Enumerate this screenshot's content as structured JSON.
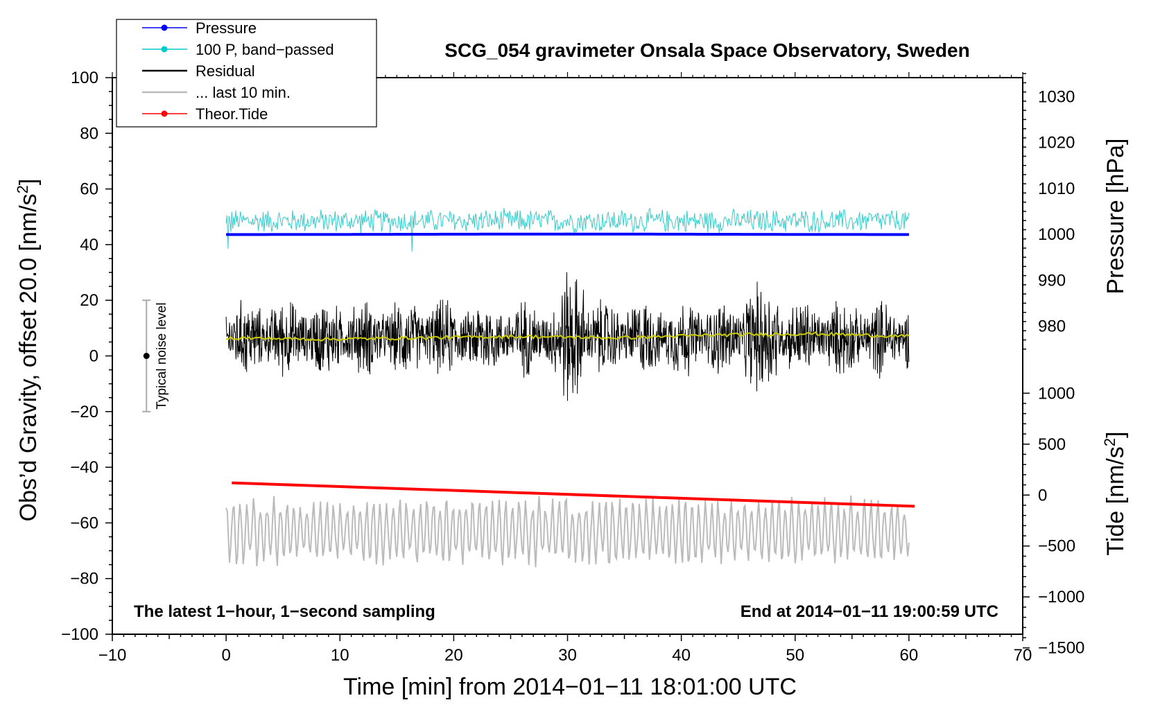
{
  "chart_data": {
    "type": "line",
    "title": "SCG_054 gravimeter Onsala Space Observatory, Sweden",
    "xlabel": "Time [min] from 2014−01−11 18:01:00 UTC",
    "ylabel_left": "Obs’d Gravity, offset 20.0 [nm/s",
    "ylabel_left_sup": "2",
    "ylabel_left_end": "]",
    "ylabel_pressure": "Pressure [hPa]",
    "ylabel_tide": "Tide [nm/s",
    "ylabel_tide_sup": "2",
    "ylabel_tide_end": "]",
    "xlim": [
      -10,
      70
    ],
    "ylim": [
      -100,
      100
    ],
    "x_ticks": [
      "−10",
      "0",
      "10",
      "20",
      "30",
      "40",
      "50",
      "60",
      "70"
    ],
    "y_ticks": [
      "−100",
      "−80",
      "−60",
      "−40",
      "−20",
      "0",
      "20",
      "40",
      "60",
      "80",
      "100"
    ],
    "pressure_axis": {
      "ticks": [
        980,
        990,
        1000,
        1010,
        1020,
        1030
      ],
      "labels": [
        "980",
        "990",
        "1000",
        "1010",
        "1020",
        "1030"
      ]
    },
    "tide_axis": {
      "ticks": [
        -1500,
        -1000,
        -500,
        0,
        500,
        1000
      ],
      "labels": [
        "−1500",
        "−1000",
        "−500",
        "0",
        "500",
        "1000"
      ]
    },
    "noise_bar": {
      "x": -7,
      "y_center": 0,
      "y_low": -20,
      "y_high": 20,
      "label": "Typical noise level"
    },
    "note_left": "The latest 1−hour, 1−second sampling",
    "note_right": "End at 2014−01−11 19:00:59 UTC",
    "legend": [
      {
        "label": "Pressure",
        "color": "#0000ff",
        "marker": true
      },
      {
        "label": "100 P, band−passed",
        "color": "#00cccc",
        "marker": true
      },
      {
        "label": "Residual",
        "color": "#000000",
        "marker": false
      },
      {
        "label": "... last 10 min.",
        "color": "#bbbbbb",
        "marker": false
      },
      {
        "label": "Theor.Tide",
        "color": "#ff0000",
        "marker": true
      }
    ],
    "series": [
      {
        "name": "Pressure",
        "color": "#0000ff",
        "x_range": [
          0,
          60
        ],
        "values_gravity_units": [
          43.6,
          43.7,
          43.8,
          43.7,
          43.6
        ]
      },
      {
        "name": "100 P, band-passed",
        "color": "#33cccc",
        "x_range": [
          0,
          60
        ],
        "mean": 48.5,
        "amplitude": 4
      },
      {
        "name": "Residual",
        "color": "#000000",
        "x_range": [
          0,
          60
        ],
        "mean": 6.5,
        "amplitude": 12,
        "min": -23,
        "max": 38
      },
      {
        "name": "Residual smoothed",
        "color": "#cccc00",
        "x_range": [
          0,
          60
        ],
        "values": [
          6.5,
          6.0,
          6.5,
          7.0,
          6.5,
          7.5,
          8.0,
          7.0
        ]
      },
      {
        "name": "... last 10 min.",
        "color": "#bbbbbb",
        "x_range": [
          0,
          60
        ],
        "mean": -63,
        "amplitude": 10,
        "min": -83,
        "max": -41
      },
      {
        "name": "Theor.Tide",
        "color": "#ff0000",
        "x": [
          0.5,
          60.5
        ],
        "tide_values": [
          120,
          -110
        ]
      }
    ]
  }
}
